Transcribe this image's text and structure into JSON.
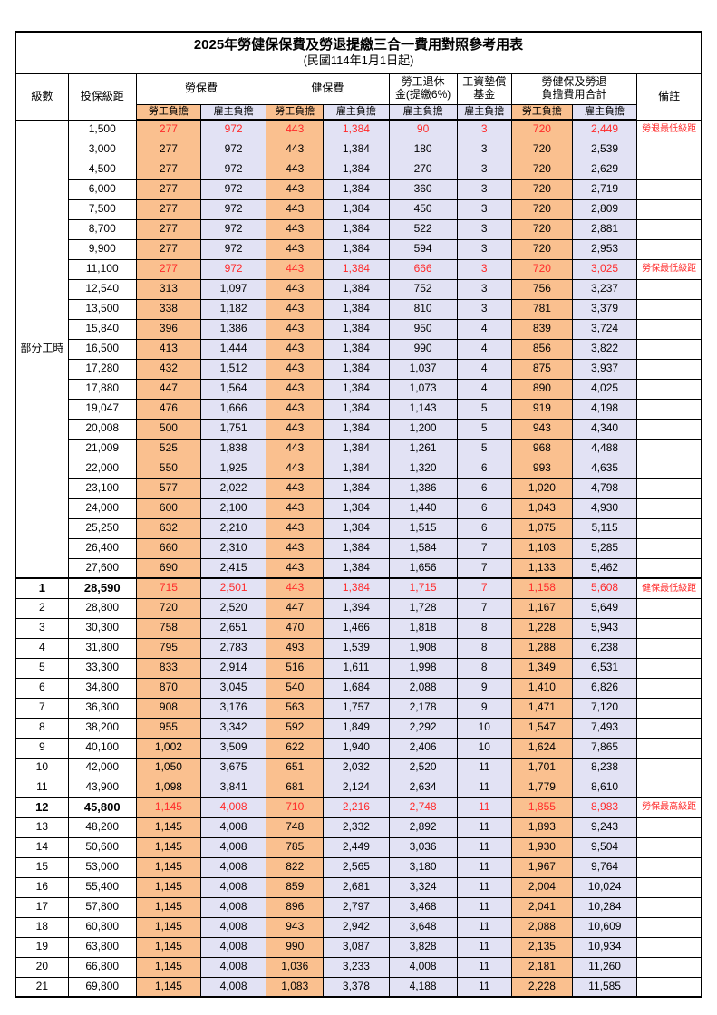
{
  "title": "2025年勞健保保費及勞退提繳三合一費用對照參考用表",
  "subtitle": "(民國114年1月1日起)",
  "colors": {
    "employee_bg": "#FAC08F",
    "employer_bg": "#E2E2F4",
    "highlight_text": "#FF2A2A"
  },
  "header": {
    "level": "級數",
    "bracket": "投保級距",
    "labor_insurance": "勞保費",
    "health_insurance": "健保費",
    "pension_line1": "勞工退休",
    "pension_line2": "金(提繳6%)",
    "fund_line1": "工資墊償",
    "fund_line2": "基金",
    "total_line1": "勞健保及勞退",
    "total_line2": "負擔費用合計",
    "remarks": "備註",
    "employee": "勞工負擔",
    "employer": "雇主負擔"
  },
  "part_time_label": "部分工時",
  "rows": [
    {
      "l": "",
      "b": "1,500",
      "c": [
        "277",
        "972",
        "443",
        "1,384",
        "90",
        "3",
        "720",
        "2,449"
      ],
      "r": "勞退最低級距",
      "red": true
    },
    {
      "l": "",
      "b": "3,000",
      "c": [
        "277",
        "972",
        "443",
        "1,384",
        "180",
        "3",
        "720",
        "2,539"
      ],
      "r": ""
    },
    {
      "l": "",
      "b": "4,500",
      "c": [
        "277",
        "972",
        "443",
        "1,384",
        "270",
        "3",
        "720",
        "2,629"
      ],
      "r": ""
    },
    {
      "l": "",
      "b": "6,000",
      "c": [
        "277",
        "972",
        "443",
        "1,384",
        "360",
        "3",
        "720",
        "2,719"
      ],
      "r": ""
    },
    {
      "l": "",
      "b": "7,500",
      "c": [
        "277",
        "972",
        "443",
        "1,384",
        "450",
        "3",
        "720",
        "2,809"
      ],
      "r": ""
    },
    {
      "l": "",
      "b": "8,700",
      "c": [
        "277",
        "972",
        "443",
        "1,384",
        "522",
        "3",
        "720",
        "2,881"
      ],
      "r": ""
    },
    {
      "l": "",
      "b": "9,900",
      "c": [
        "277",
        "972",
        "443",
        "1,384",
        "594",
        "3",
        "720",
        "2,953"
      ],
      "r": ""
    },
    {
      "l": "",
      "b": "11,100",
      "c": [
        "277",
        "972",
        "443",
        "1,384",
        "666",
        "3",
        "720",
        "3,025"
      ],
      "r": "勞保最低級距",
      "red": true
    },
    {
      "l": "",
      "b": "12,540",
      "c": [
        "313",
        "1,097",
        "443",
        "1,384",
        "752",
        "3",
        "756",
        "3,237"
      ],
      "r": ""
    },
    {
      "l": "",
      "b": "13,500",
      "c": [
        "338",
        "1,182",
        "443",
        "1,384",
        "810",
        "3",
        "781",
        "3,379"
      ],
      "r": ""
    },
    {
      "l": "",
      "b": "15,840",
      "c": [
        "396",
        "1,386",
        "443",
        "1,384",
        "950",
        "4",
        "839",
        "3,724"
      ],
      "r": ""
    },
    {
      "l": "",
      "b": "16,500",
      "c": [
        "413",
        "1,444",
        "443",
        "1,384",
        "990",
        "4",
        "856",
        "3,822"
      ],
      "r": ""
    },
    {
      "l": "",
      "b": "17,280",
      "c": [
        "432",
        "1,512",
        "443",
        "1,384",
        "1,037",
        "4",
        "875",
        "3,937"
      ],
      "r": ""
    },
    {
      "l": "",
      "b": "17,880",
      "c": [
        "447",
        "1,564",
        "443",
        "1,384",
        "1,073",
        "4",
        "890",
        "4,025"
      ],
      "r": ""
    },
    {
      "l": "",
      "b": "19,047",
      "c": [
        "476",
        "1,666",
        "443",
        "1,384",
        "1,143",
        "5",
        "919",
        "4,198"
      ],
      "r": ""
    },
    {
      "l": "",
      "b": "20,008",
      "c": [
        "500",
        "1,751",
        "443",
        "1,384",
        "1,200",
        "5",
        "943",
        "4,340"
      ],
      "r": ""
    },
    {
      "l": "",
      "b": "21,009",
      "c": [
        "525",
        "1,838",
        "443",
        "1,384",
        "1,261",
        "5",
        "968",
        "4,488"
      ],
      "r": ""
    },
    {
      "l": "",
      "b": "22,000",
      "c": [
        "550",
        "1,925",
        "443",
        "1,384",
        "1,320",
        "6",
        "993",
        "4,635"
      ],
      "r": ""
    },
    {
      "l": "",
      "b": "23,100",
      "c": [
        "577",
        "2,022",
        "443",
        "1,384",
        "1,386",
        "6",
        "1,020",
        "4,798"
      ],
      "r": ""
    },
    {
      "l": "",
      "b": "24,000",
      "c": [
        "600",
        "2,100",
        "443",
        "1,384",
        "1,440",
        "6",
        "1,043",
        "4,930"
      ],
      "r": ""
    },
    {
      "l": "",
      "b": "25,250",
      "c": [
        "632",
        "2,210",
        "443",
        "1,384",
        "1,515",
        "6",
        "1,075",
        "5,115"
      ],
      "r": ""
    },
    {
      "l": "",
      "b": "26,400",
      "c": [
        "660",
        "2,310",
        "443",
        "1,384",
        "1,584",
        "7",
        "1,103",
        "5,285"
      ],
      "r": ""
    },
    {
      "l": "",
      "b": "27,600",
      "c": [
        "690",
        "2,415",
        "443",
        "1,384",
        "1,656",
        "7",
        "1,133",
        "5,462"
      ],
      "r": ""
    },
    {
      "l": "1",
      "b": "28,590",
      "c": [
        "715",
        "2,501",
        "443",
        "1,384",
        "1,715",
        "7",
        "1,158",
        "5,608"
      ],
      "r": "健保最低級距",
      "red": true,
      "bold": true,
      "thick": true
    },
    {
      "l": "2",
      "b": "28,800",
      "c": [
        "720",
        "2,520",
        "447",
        "1,394",
        "1,728",
        "7",
        "1,167",
        "5,649"
      ],
      "r": ""
    },
    {
      "l": "3",
      "b": "30,300",
      "c": [
        "758",
        "2,651",
        "470",
        "1,466",
        "1,818",
        "8",
        "1,228",
        "5,943"
      ],
      "r": ""
    },
    {
      "l": "4",
      "b": "31,800",
      "c": [
        "795",
        "2,783",
        "493",
        "1,539",
        "1,908",
        "8",
        "1,288",
        "6,238"
      ],
      "r": ""
    },
    {
      "l": "5",
      "b": "33,300",
      "c": [
        "833",
        "2,914",
        "516",
        "1,611",
        "1,998",
        "8",
        "1,349",
        "6,531"
      ],
      "r": ""
    },
    {
      "l": "6",
      "b": "34,800",
      "c": [
        "870",
        "3,045",
        "540",
        "1,684",
        "2,088",
        "9",
        "1,410",
        "6,826"
      ],
      "r": ""
    },
    {
      "l": "7",
      "b": "36,300",
      "c": [
        "908",
        "3,176",
        "563",
        "1,757",
        "2,178",
        "9",
        "1,471",
        "7,120"
      ],
      "r": ""
    },
    {
      "l": "8",
      "b": "38,200",
      "c": [
        "955",
        "3,342",
        "592",
        "1,849",
        "2,292",
        "10",
        "1,547",
        "7,493"
      ],
      "r": ""
    },
    {
      "l": "9",
      "b": "40,100",
      "c": [
        "1,002",
        "3,509",
        "622",
        "1,940",
        "2,406",
        "10",
        "1,624",
        "7,865"
      ],
      "r": ""
    },
    {
      "l": "10",
      "b": "42,000",
      "c": [
        "1,050",
        "3,675",
        "651",
        "2,032",
        "2,520",
        "11",
        "1,701",
        "8,238"
      ],
      "r": ""
    },
    {
      "l": "11",
      "b": "43,900",
      "c": [
        "1,098",
        "3,841",
        "681",
        "2,124",
        "2,634",
        "11",
        "1,779",
        "8,610"
      ],
      "r": ""
    },
    {
      "l": "12",
      "b": "45,800",
      "c": [
        "1,145",
        "4,008",
        "710",
        "2,216",
        "2,748",
        "11",
        "1,855",
        "8,983"
      ],
      "r": "勞保最高級距",
      "red": true,
      "bold": true
    },
    {
      "l": "13",
      "b": "48,200",
      "c": [
        "1,145",
        "4,008",
        "748",
        "2,332",
        "2,892",
        "11",
        "1,893",
        "9,243"
      ],
      "r": ""
    },
    {
      "l": "14",
      "b": "50,600",
      "c": [
        "1,145",
        "4,008",
        "785",
        "2,449",
        "3,036",
        "11",
        "1,930",
        "9,504"
      ],
      "r": ""
    },
    {
      "l": "15",
      "b": "53,000",
      "c": [
        "1,145",
        "4,008",
        "822",
        "2,565",
        "3,180",
        "11",
        "1,967",
        "9,764"
      ],
      "r": ""
    },
    {
      "l": "16",
      "b": "55,400",
      "c": [
        "1,145",
        "4,008",
        "859",
        "2,681",
        "3,324",
        "11",
        "2,004",
        "10,024"
      ],
      "r": ""
    },
    {
      "l": "17",
      "b": "57,800",
      "c": [
        "1,145",
        "4,008",
        "896",
        "2,797",
        "3,468",
        "11",
        "2,041",
        "10,284"
      ],
      "r": ""
    },
    {
      "l": "18",
      "b": "60,800",
      "c": [
        "1,145",
        "4,008",
        "943",
        "2,942",
        "3,648",
        "11",
        "2,088",
        "10,609"
      ],
      "r": ""
    },
    {
      "l": "19",
      "b": "63,800",
      "c": [
        "1,145",
        "4,008",
        "990",
        "3,087",
        "3,828",
        "11",
        "2,135",
        "10,934"
      ],
      "r": ""
    },
    {
      "l": "20",
      "b": "66,800",
      "c": [
        "1,145",
        "4,008",
        "1,036",
        "3,233",
        "4,008",
        "11",
        "2,181",
        "11,260"
      ],
      "r": ""
    },
    {
      "l": "21",
      "b": "69,800",
      "c": [
        "1,145",
        "4,008",
        "1,083",
        "3,378",
        "4,188",
        "11",
        "2,228",
        "11,585"
      ],
      "r": ""
    }
  ]
}
